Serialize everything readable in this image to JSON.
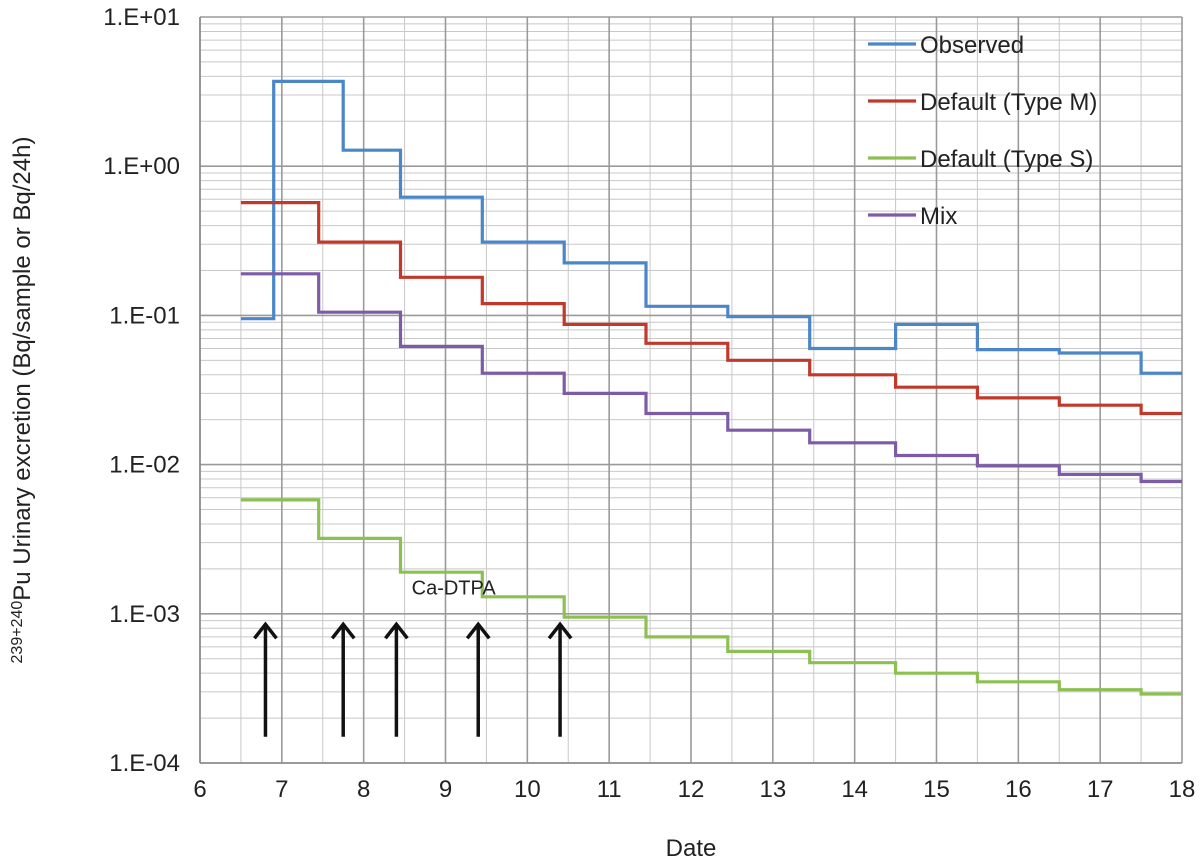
{
  "chart_data": {
    "type": "line",
    "step": true,
    "xlabel": "Date",
    "ylabel_sup": "239+240",
    "ylabel_main": "Pu Urinary excretion (Bq/sample or Bq/24h)",
    "xlim": [
      6,
      18
    ],
    "ylim": [
      0.0001,
      10
    ],
    "yscale": "log",
    "grid": true,
    "legend_position": "top-right",
    "x_ticks": [
      "6",
      "7",
      "8",
      "9",
      "10",
      "11",
      "12",
      "13",
      "14",
      "15",
      "16",
      "17",
      "18"
    ],
    "y_ticks": [
      "1.E-04",
      "1.E-03",
      "1.E-02",
      "1.E-01",
      "1.E+00",
      "1.E+01"
    ],
    "series": [
      {
        "name": "Observed",
        "color": "#4a86c8",
        "x": [
          6.5,
          6.9,
          7.75,
          8.45,
          9.45,
          10.45,
          11.45,
          12.45,
          13.45,
          14.5,
          15.5,
          16.5,
          17.5,
          18.0
        ],
        "y": [
          0.095,
          3.7,
          1.28,
          0.62,
          0.31,
          0.225,
          0.115,
          0.098,
          0.06,
          0.087,
          0.059,
          0.056,
          0.041,
          0.041
        ]
      },
      {
        "name": "Default (Type M)",
        "color": "#c0392b",
        "x": [
          6.5,
          7.45,
          8.45,
          9.45,
          10.45,
          11.45,
          12.45,
          13.45,
          14.5,
          15.5,
          16.5,
          17.5,
          18.0
        ],
        "y": [
          0.57,
          0.31,
          0.18,
          0.12,
          0.087,
          0.065,
          0.05,
          0.04,
          0.033,
          0.028,
          0.025,
          0.022,
          0.022
        ]
      },
      {
        "name": "Default (Type S)",
        "color": "#8cc152",
        "x": [
          6.5,
          7.45,
          8.45,
          9.45,
          10.45,
          11.45,
          12.45,
          13.45,
          14.5,
          15.5,
          16.5,
          17.5,
          18.0
        ],
        "y": [
          0.0058,
          0.0032,
          0.0019,
          0.0013,
          0.00095,
          0.0007,
          0.00056,
          0.00047,
          0.0004,
          0.00035,
          0.00031,
          0.00029,
          0.00029
        ]
      },
      {
        "name": "Mix",
        "color": "#7d5ba6",
        "x": [
          6.5,
          7.45,
          8.45,
          9.45,
          10.45,
          11.45,
          12.45,
          13.45,
          14.5,
          15.5,
          16.5,
          17.5,
          18.0
        ],
        "y": [
          0.19,
          0.105,
          0.062,
          0.041,
          0.03,
          0.022,
          0.017,
          0.014,
          0.0115,
          0.0098,
          0.0086,
          0.0077,
          0.0077
        ]
      }
    ],
    "annotations": {
      "label": "Ca-DTPA",
      "label_x": 9.1,
      "label_y": 0.00135,
      "arrow_x": [
        6.8,
        7.75,
        8.4,
        9.4,
        10.4
      ],
      "arrow_y_from": 0.00015,
      "arrow_y_to": 0.00085
    }
  }
}
